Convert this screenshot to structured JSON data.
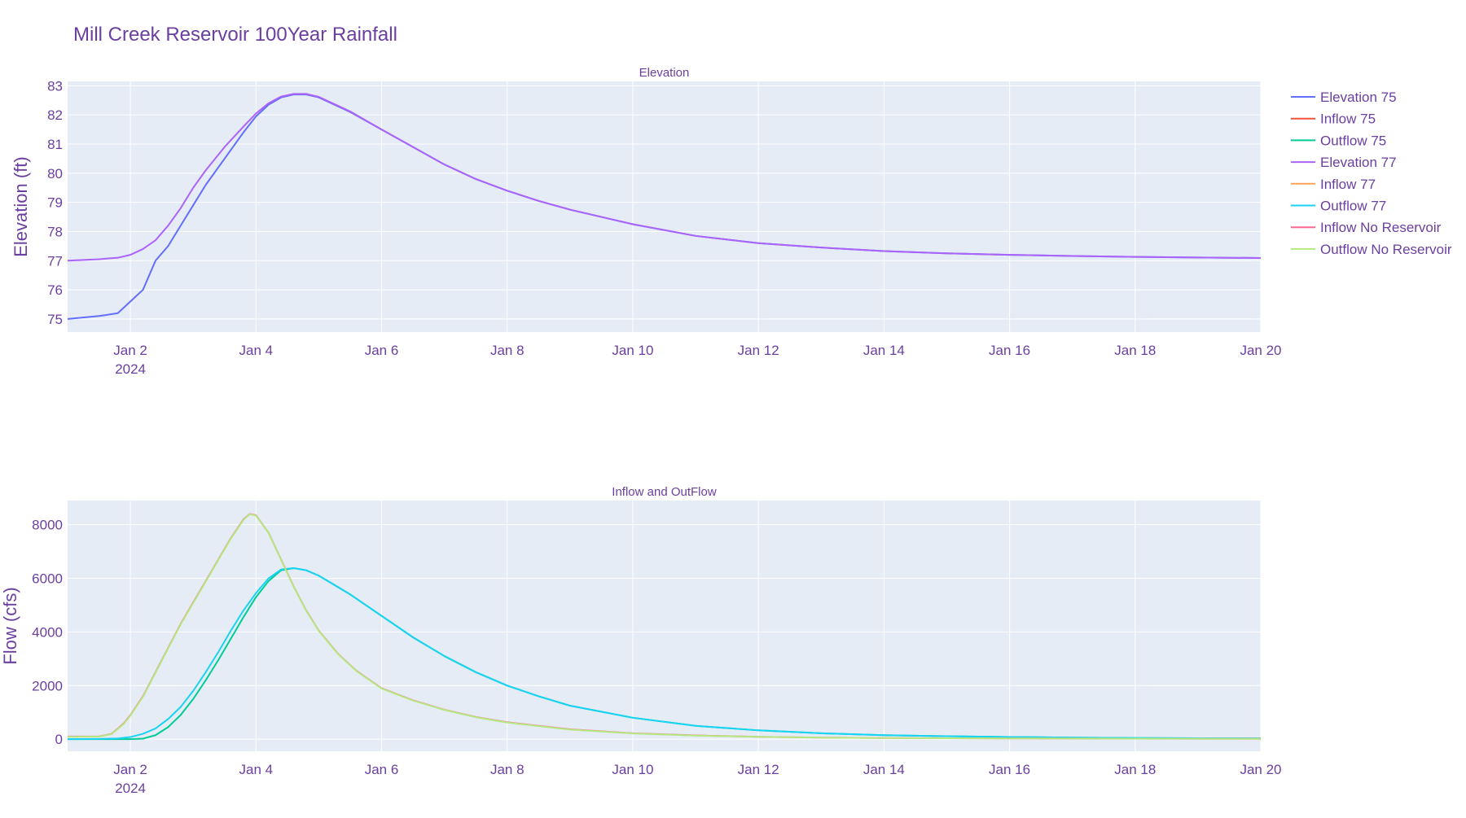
{
  "chart_data": {
    "title": "Mill Creek Reservoir 100Year Rainfall",
    "colors": {
      "text": "#6b3fa0",
      "plot_bg": "#e5ecf6",
      "grid": "#ffffff"
    },
    "x_ticks": [
      {
        "t": 1.0,
        "label": "Jan 2",
        "sublabel": "2024"
      },
      {
        "t": 3.0,
        "label": "Jan 4"
      },
      {
        "t": 5.0,
        "label": "Jan 6"
      },
      {
        "t": 7.0,
        "label": "Jan 8"
      },
      {
        "t": 9.0,
        "label": "Jan 10"
      },
      {
        "t": 11.0,
        "label": "Jan 12"
      },
      {
        "t": 13.0,
        "label": "Jan 14"
      },
      {
        "t": 15.0,
        "label": "Jan 16"
      },
      {
        "t": 17.0,
        "label": "Jan 18"
      },
      {
        "t": 19.0,
        "label": "Jan 20"
      }
    ],
    "x_range": [
      0,
      19
    ],
    "legend": {
      "placement": "top-right",
      "entries": [
        {
          "name": "Elevation 75",
          "color": "#636efa"
        },
        {
          "name": "Inflow 75",
          "color": "#ef553b"
        },
        {
          "name": "Outflow 75",
          "color": "#00cc96"
        },
        {
          "name": "Elevation 77",
          "color": "#ab63fa"
        },
        {
          "name": "Inflow 77",
          "color": "#ffa15a"
        },
        {
          "name": "Outflow 77",
          "color": "#19d3f3"
        },
        {
          "name": "Inflow No Reservoir",
          "color": "#ff6692"
        },
        {
          "name": "Outflow No Reservoir",
          "color": "#b6e880"
        }
      ]
    },
    "subplots": [
      {
        "id": "elevation",
        "type": "line",
        "title": "Elevation",
        "ylabel": "Elevation (ft)",
        "ylim": [
          74.55,
          83.15
        ],
        "yticks": [
          75,
          76,
          77,
          78,
          79,
          80,
          81,
          82,
          83
        ],
        "grid": true,
        "series": [
          {
            "name": "Elevation 75",
            "color": "#636efa",
            "x": [
              0,
              0.5,
              0.8,
              1.0,
              1.2,
              1.4,
              1.6,
              1.8,
              2.0,
              2.2,
              2.5,
              2.8,
              3.0,
              3.2,
              3.4,
              3.6,
              3.8,
              4.0,
              4.5,
              5.0,
              5.5,
              6.0,
              6.5,
              7.0,
              7.5,
              8.0,
              9.0,
              10.0,
              11.0,
              12.0,
              13.0,
              14.0,
              15.0,
              16.0,
              17.0,
              18.0,
              19.0
            ],
            "y": [
              75.0,
              75.1,
              75.2,
              75.6,
              76.0,
              77.0,
              77.5,
              78.2,
              78.9,
              79.6,
              80.5,
              81.4,
              81.95,
              82.35,
              82.6,
              82.7,
              82.7,
              82.6,
              82.1,
              81.5,
              80.9,
              80.3,
              79.8,
              79.4,
              79.05,
              78.75,
              78.25,
              77.85,
              77.6,
              77.45,
              77.33,
              77.25,
              77.2,
              77.16,
              77.13,
              77.11,
              77.09
            ]
          },
          {
            "name": "Elevation 77",
            "color": "#ab63fa",
            "x": [
              0,
              0.5,
              0.8,
              1.0,
              1.2,
              1.4,
              1.6,
              1.8,
              2.0,
              2.2,
              2.5,
              2.8,
              3.0,
              3.2,
              3.4,
              3.6,
              3.8,
              4.0,
              4.5,
              5.0,
              5.5,
              6.0,
              6.5,
              7.0,
              7.5,
              8.0,
              9.0,
              10.0,
              11.0,
              12.0,
              13.0,
              14.0,
              15.0,
              16.0,
              17.0,
              18.0,
              19.0
            ],
            "y": [
              77.0,
              77.05,
              77.1,
              77.2,
              77.4,
              77.7,
              78.2,
              78.8,
              79.5,
              80.1,
              80.9,
              81.6,
              82.05,
              82.4,
              82.63,
              82.72,
              82.72,
              82.62,
              82.12,
              81.5,
              80.9,
              80.3,
              79.8,
              79.4,
              79.05,
              78.75,
              78.25,
              77.85,
              77.6,
              77.45,
              77.33,
              77.25,
              77.2,
              77.16,
              77.13,
              77.11,
              77.09
            ]
          }
        ]
      },
      {
        "id": "flow",
        "type": "line",
        "title": "Inflow and OutFlow",
        "ylabel": "Flow (cfs)",
        "ylim": [
          -450,
          8900
        ],
        "yticks": [
          0,
          2000,
          4000,
          6000,
          8000
        ],
        "grid": true,
        "series": [
          {
            "name": "Outflow 75",
            "color": "#00cc96",
            "x": [
              0,
              1.0,
              1.2,
              1.4,
              1.6,
              1.8,
              2.0,
              2.2,
              2.4,
              2.6,
              2.8,
              3.0,
              3.2,
              3.4,
              3.6,
              3.8,
              4.0,
              4.5,
              5.0,
              5.5,
              6.0,
              6.5,
              7.0,
              7.5,
              8.0,
              9.0,
              10.0,
              11.0,
              12.0,
              13.0,
              14.0,
              15.0,
              16.0,
              17.0,
              18.0,
              19.0
            ],
            "y": [
              0,
              0,
              20,
              150,
              450,
              900,
              1500,
              2200,
              2950,
              3750,
              4550,
              5300,
              5900,
              6300,
              6380,
              6300,
              6100,
              5400,
              4600,
              3800,
              3100,
              2500,
              2000,
              1600,
              1250,
              800,
              500,
              330,
              220,
              150,
              110,
              80,
              60,
              45,
              35,
              30
            ]
          },
          {
            "name": "Outflow 77",
            "color": "#19d3f3",
            "x": [
              0,
              0.5,
              0.8,
              1.0,
              1.2,
              1.4,
              1.6,
              1.8,
              2.0,
              2.2,
              2.4,
              2.6,
              2.8,
              3.0,
              3.2,
              3.4,
              3.6,
              3.8,
              4.0,
              4.5,
              5.0,
              5.5,
              6.0,
              6.5,
              7.0,
              7.5,
              8.0,
              9.0,
              10.0,
              11.0,
              12.0,
              13.0,
              14.0,
              15.0,
              16.0,
              17.0,
              18.0,
              19.0
            ],
            "y": [
              0,
              10,
              30,
              80,
              200,
              400,
              750,
              1200,
              1800,
              2500,
              3250,
              4050,
              4800,
              5450,
              6000,
              6330,
              6380,
              6300,
              6100,
              5400,
              4600,
              3800,
              3100,
              2500,
              2000,
              1600,
              1250,
              800,
              500,
              330,
              220,
              150,
              110,
              80,
              60,
              45,
              35,
              30
            ]
          },
          {
            "name": "Inflow No Reservoir",
            "color": "#ff6692",
            "x": [
              0,
              0.5,
              0.7,
              0.9,
              1.0,
              1.2,
              1.4,
              1.6,
              1.8,
              2.0,
              2.2,
              2.4,
              2.6,
              2.8,
              2.9,
              3.0,
              3.2,
              3.4,
              3.6,
              3.8,
              4.0,
              4.3,
              4.6,
              5.0,
              5.5,
              6.0,
              6.5,
              7.0,
              8.0,
              9.0,
              10.0,
              11.0,
              12.0,
              13.0,
              14.0,
              15.0,
              16.0,
              17.0,
              18.0,
              19.0
            ],
            "y": [
              100,
              100,
              200,
              600,
              900,
              1600,
              2500,
              3400,
              4300,
              5100,
              5900,
              6700,
              7500,
              8200,
              8400,
              8350,
              7700,
              6700,
              5700,
              4800,
              4050,
              3200,
              2550,
              1900,
              1450,
              1100,
              830,
              630,
              370,
              220,
              140,
              90,
              60,
              45,
              35,
              30,
              25,
              20,
              18,
              15
            ]
          },
          {
            "name": "Outflow No Reservoir",
            "color": "#b6e880",
            "x": [
              0,
              0.5,
              0.7,
              0.9,
              1.0,
              1.2,
              1.4,
              1.6,
              1.8,
              2.0,
              2.2,
              2.4,
              2.6,
              2.8,
              2.9,
              3.0,
              3.2,
              3.4,
              3.6,
              3.8,
              4.0,
              4.3,
              4.6,
              5.0,
              5.5,
              6.0,
              6.5,
              7.0,
              8.0,
              9.0,
              10.0,
              11.0,
              12.0,
              13.0,
              14.0,
              15.0,
              16.0,
              17.0,
              18.0,
              19.0
            ],
            "y": [
              90,
              95,
              190,
              580,
              880,
              1580,
              2480,
              3380,
              4280,
              5080,
              5880,
              6680,
              7480,
              8180,
              8390,
              8340,
              7690,
              6690,
              5690,
              4790,
              4040,
              3190,
              2540,
              1890,
              1440,
              1090,
              820,
              620,
              360,
              215,
              135,
              88,
              58,
              44,
              34,
              29,
              24,
              19,
              17,
              14
            ]
          }
        ]
      }
    ]
  }
}
